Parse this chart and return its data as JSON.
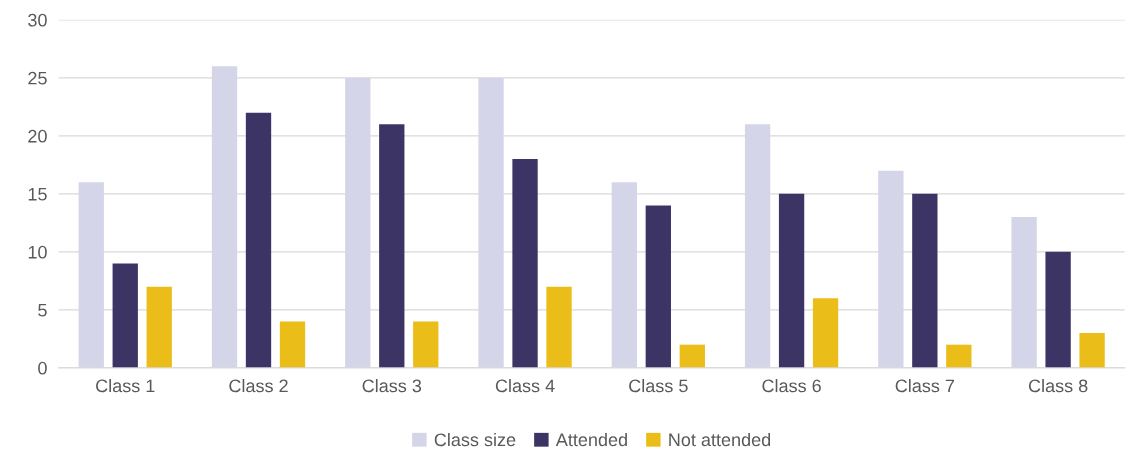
{
  "chart_data": {
    "type": "bar",
    "categories": [
      "Class 1",
      "Class 2",
      "Class 3",
      "Class 4",
      "Class 5",
      "Class 6",
      "Class 7",
      "Class 8"
    ],
    "series": [
      {
        "name": "Class size",
        "color": "#d5d5e9",
        "values": [
          16,
          26,
          25,
          25,
          16,
          21,
          17,
          13
        ]
      },
      {
        "name": "Attended",
        "color": "#3b3464",
        "values": [
          9,
          22,
          21,
          18,
          14,
          15,
          15,
          10
        ]
      },
      {
        "name": "Not attended",
        "color": "#ebbd18",
        "values": [
          7,
          4,
          4,
          7,
          2,
          6,
          2,
          3
        ]
      }
    ],
    "ylim": [
      0,
      30
    ],
    "yticks": [
      0,
      5,
      10,
      15,
      20,
      25,
      30
    ],
    "grid": "y",
    "legend": "bottom"
  }
}
